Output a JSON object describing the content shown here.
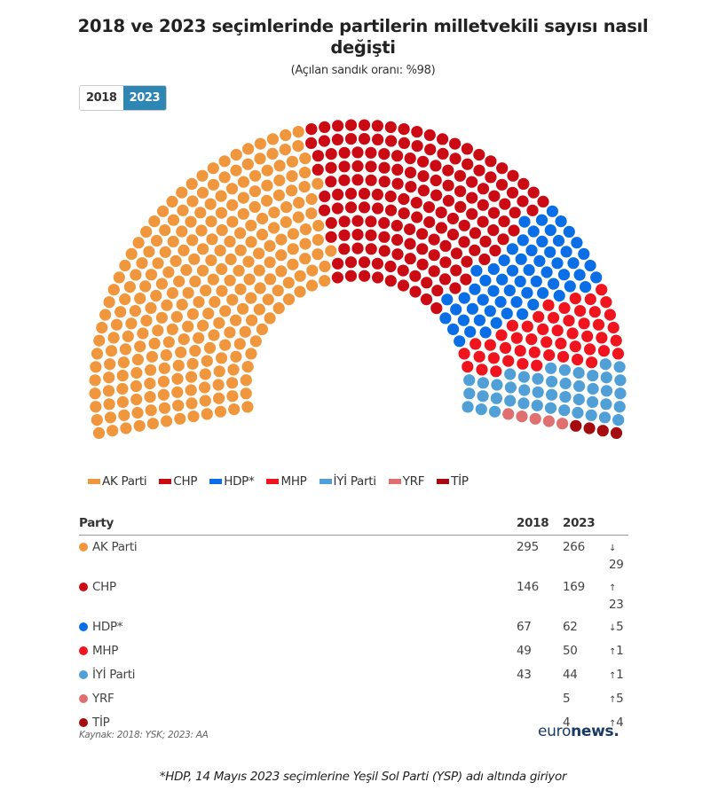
{
  "header": {
    "title": "2018 ve 2023 seçimlerinde partilerin milletvekili sayısı nasıl değişti",
    "subtitle": "(Açılan sandık oranı: %98)"
  },
  "toggle": {
    "options": [
      "2018",
      "2023"
    ],
    "selected": "2023"
  },
  "legend": [
    {
      "label": "AK Parti",
      "color": "#f0963c"
    },
    {
      "label": "CHP",
      "color": "#cc0a14"
    },
    {
      "label": "HDP*",
      "color": "#0a6ee6"
    },
    {
      "label": "MHP",
      "color": "#f0141e"
    },
    {
      "label": "İYİ Parti",
      "color": "#50a0d7"
    },
    {
      "label": "YRF",
      "color": "#e07070"
    },
    {
      "label": "TİP",
      "color": "#a50a0f"
    }
  ],
  "table": {
    "headers": {
      "party": "Party",
      "y2018": "2018",
      "y2023": "2023"
    },
    "rows": [
      {
        "party": "AK Parti",
        "color": "#f0963c",
        "y2018": "295",
        "y2023": "266",
        "arrow": "↓",
        "change": "29",
        "dir": "down"
      },
      {
        "party": "CHP",
        "color": "#cc0a14",
        "y2018": "146",
        "y2023": "169",
        "arrow": "↑",
        "change": "23",
        "dir": "up"
      },
      {
        "party": "HDP*",
        "color": "#0a6ee6",
        "y2018": "67",
        "y2023": "62",
        "arrow": "↓",
        "change": "5",
        "dir": "down"
      },
      {
        "party": "MHP",
        "color": "#f0141e",
        "y2018": "49",
        "y2023": "50",
        "arrow": "↑",
        "change": "1",
        "dir": "up"
      },
      {
        "party": "İYİ Parti",
        "color": "#50a0d7",
        "y2018": "43",
        "y2023": "44",
        "arrow": "↑",
        "change": "1",
        "dir": "up"
      },
      {
        "party": "YRF",
        "color": "#e07070",
        "y2018": "",
        "y2023": "5",
        "arrow": "↑",
        "change": "5",
        "dir": "up"
      },
      {
        "party": "TİP",
        "color": "#a50a0f",
        "y2018": "",
        "y2023": "4",
        "arrow": "↑",
        "change": "4",
        "dir": "up"
      }
    ]
  },
  "source": "Kaynak: 2018: YSK; 2023: AA",
  "logo": {
    "part1": "euro",
    "part2": "news."
  },
  "footnote": "*HDP, 14 Mayıs 2023 seçimlerine Yeşil Sol Parti (YSP) adı altında giriyor",
  "chart_data": {
    "type": "parliament",
    "title": "2018 ve 2023 seçimlerinde partilerin milletvekili sayısı nasıl değişti",
    "subtitle": "(Açılan sandık oranı: %98)",
    "selected_year": "2023",
    "total_seats": 600,
    "categories": [
      "AK Parti",
      "CHP",
      "HDP*",
      "MHP",
      "İYİ Parti",
      "YRF",
      "TİP"
    ],
    "colors": [
      "#f0963c",
      "#cc0a14",
      "#0a6ee6",
      "#f0141e",
      "#50a0d7",
      "#e07070",
      "#a50a0f"
    ],
    "series": [
      {
        "name": "2018",
        "values": [
          295,
          146,
          67,
          49,
          43,
          null,
          null
        ]
      },
      {
        "name": "2023",
        "values": [
          266,
          169,
          62,
          50,
          44,
          5,
          4
        ]
      }
    ],
    "legend_position": "bottom-left"
  }
}
